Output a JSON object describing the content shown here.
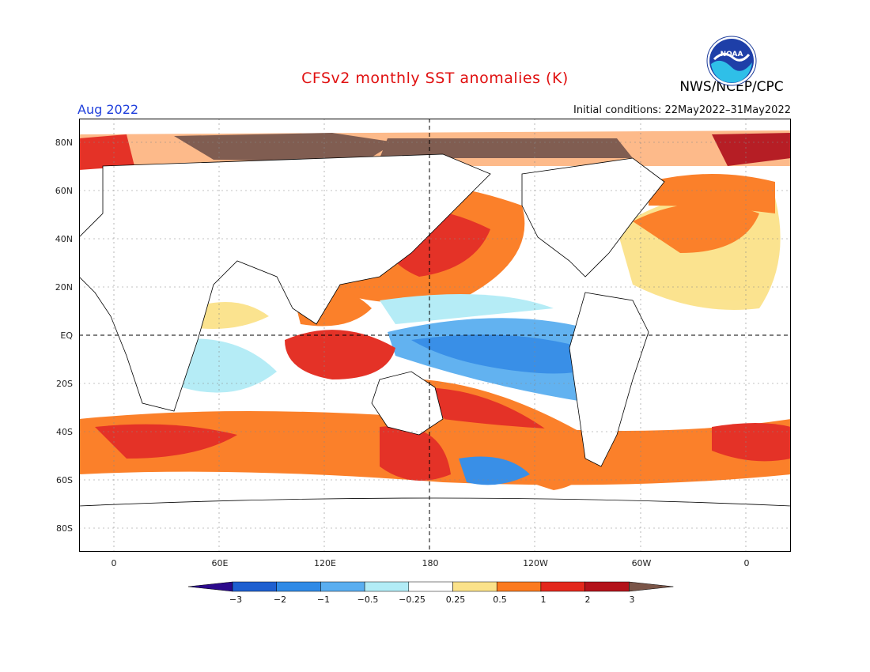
{
  "header": {
    "title": "CFSv2 monthly SST anomalies (K)",
    "agency": "NWS/NCEP/CPC",
    "month": "Aug 2022",
    "initial_conditions": "Initial conditions: 22May2022–31May2022"
  },
  "logo": {
    "text": "NOAA"
  },
  "map": {
    "lat_labels": [
      "80N",
      "60N",
      "40N",
      "20N",
      "EQ",
      "20S",
      "40S",
      "60S",
      "80S"
    ],
    "lon_labels": [
      "0",
      "60E",
      "120E",
      "180",
      "120W",
      "60W",
      "0"
    ]
  },
  "colorbar": {
    "labels": [
      "−3",
      "−2",
      "−1",
      "−0.5",
      "−0.25",
      "0.25",
      "0.5",
      "1",
      "2",
      "3"
    ],
    "colors": [
      "#2c0a8c",
      "#1e5fd0",
      "#2f8ae6",
      "#5aaef0",
      "#b2ecf6",
      "#ffffff",
      "#fbe28a",
      "#fb7a1f",
      "#e3281c",
      "#b3121a",
      "#7a5548"
    ]
  }
}
